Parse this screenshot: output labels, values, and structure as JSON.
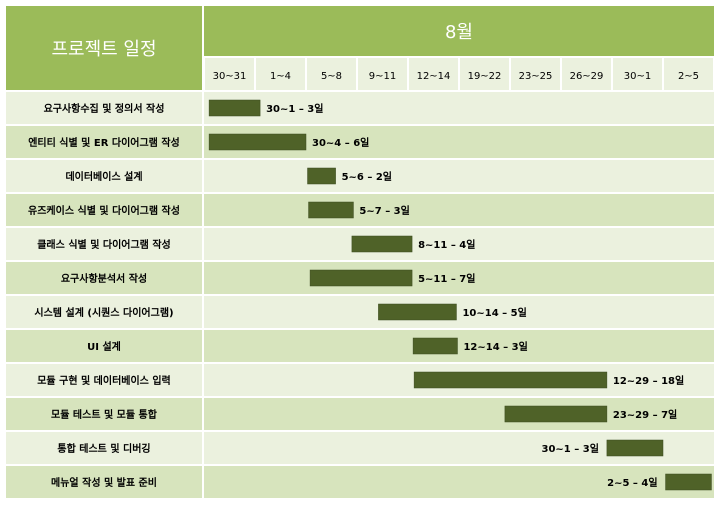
{
  "chart_data": {
    "type": "gantt",
    "title": "프로젝트 일정",
    "month_label": "8월",
    "periods": [
      "30~31",
      "1~4",
      "5~8",
      "9~11",
      "12~14",
      "19~22",
      "23~25",
      "26~29",
      "30~1",
      "2~5"
    ],
    "tasks": [
      {
        "name": "요구사항수집 및 정의서 작성",
        "start": 0.1,
        "end": 1.1,
        "label": "30~1 – 3일"
      },
      {
        "name": "엔티티 식별 및 ER 다이어그램 작성",
        "start": 0.1,
        "end": 2.0,
        "label": "30~4 – 6일"
      },
      {
        "name": "데이터베이스 설계",
        "start": 2.03,
        "end": 2.58,
        "label": "5~6 – 2일"
      },
      {
        "name": "유즈케이스 식별 및 다이어그램 작성",
        "start": 2.05,
        "end": 2.93,
        "label": "5~7 – 3일"
      },
      {
        "name": "클래스 식별 및 다이어그램 작성",
        "start": 2.9,
        "end": 4.08,
        "label": "8~11 – 4일"
      },
      {
        "name": "요구사항분석서 작성",
        "start": 2.08,
        "end": 4.08,
        "label": "5~11 – 7일"
      },
      {
        "name": "시스템 설계 (시퀀스 다이어그램)",
        "start": 3.42,
        "end": 4.95,
        "label": "10~14 – 5일"
      },
      {
        "name": "UI 설계",
        "start": 4.1,
        "end": 4.97,
        "label": "12~14 – 3일"
      },
      {
        "name": "모듈 구현 및 데이터베이스 입력",
        "start": 4.12,
        "end": 7.9,
        "label": "12~29 – 18일"
      },
      {
        "name": "모듈 테스트 및 모듈 통합",
        "start": 5.9,
        "end": 7.9,
        "label": "23~29 – 7일"
      },
      {
        "name": "통합 테스트 및 디버깅",
        "start": 7.9,
        "end": 9.0,
        "label": "30~1 – 3일"
      },
      {
        "name": "메뉴얼 작성 및 발표 준비",
        "start": 9.05,
        "end": 9.95,
        "label": "2~5 – 4일"
      }
    ],
    "colors": {
      "header_dark": "#9BBB59",
      "band": "#D7E4BD",
      "band_light": "#EBF1DE",
      "bar": "#4F6228",
      "header_text": "#ffffff",
      "text": "#000000"
    }
  }
}
